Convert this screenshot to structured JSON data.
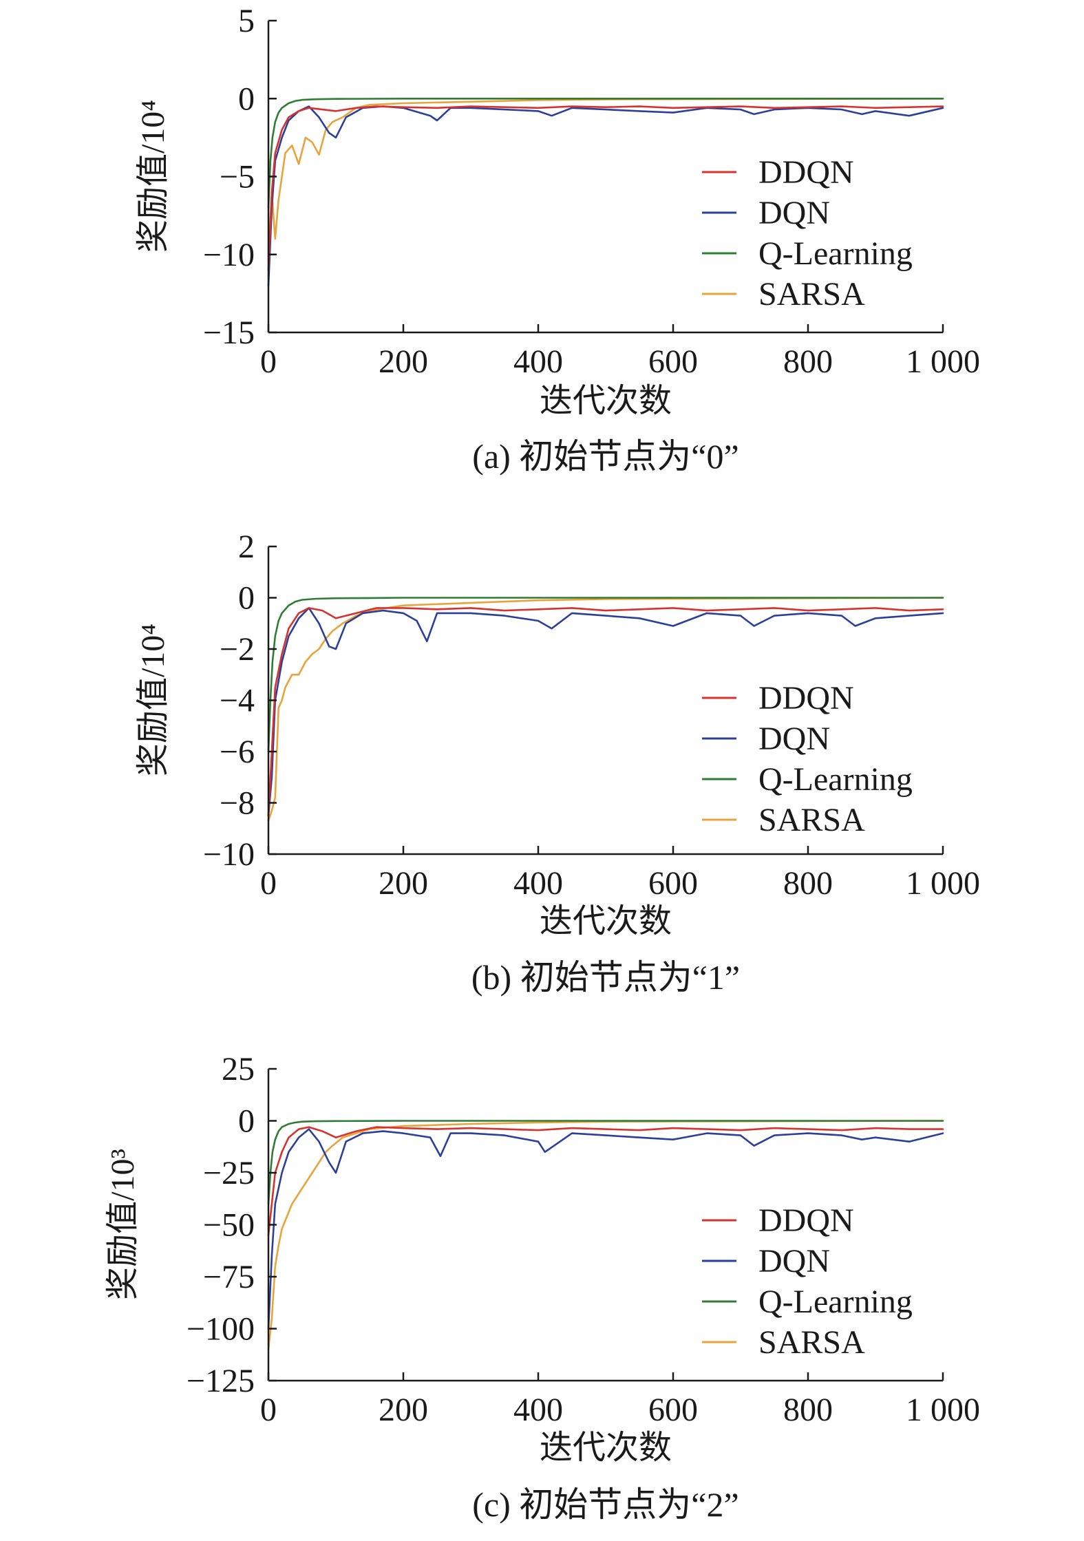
{
  "figure_xlabel": "迭代次数",
  "series_styles": [
    {
      "name": "DDQN",
      "color": "#d8322e"
    },
    {
      "name": "DQN",
      "color": "#2b3f9b"
    },
    {
      "name": "Q-Learning",
      "color": "#2f7d32"
    },
    {
      "name": "SARSA",
      "color": "#e8a33a"
    }
  ],
  "chart_data": [
    {
      "type": "line",
      "caption": "(a) 初始节点为“0”",
      "ylabel": "奖励值/10⁴",
      "xlabel": "迭代次数",
      "xlim": [
        0,
        1000
      ],
      "ylim": [
        -15,
        5
      ],
      "xticks": [
        0,
        200,
        400,
        600,
        800,
        1000
      ],
      "xtick_labels": [
        "0",
        "200",
        "400",
        "600",
        "800",
        "1 000"
      ],
      "yticks": [
        5,
        0,
        -5,
        -10,
        -15
      ],
      "ytick_labels": [
        "5",
        "0",
        "−5",
        "−10",
        "−15"
      ],
      "legend": [
        "DDQN",
        "DQN",
        "Q-Learning",
        "SARSA"
      ],
      "series": [
        {
          "name": "DDQN",
          "x": [
            0,
            5,
            10,
            20,
            30,
            45,
            60,
            80,
            100,
            130,
            160,
            200,
            250,
            300,
            350,
            400,
            450,
            500,
            550,
            600,
            650,
            700,
            750,
            800,
            850,
            900,
            950,
            1000
          ],
          "y": [
            -11,
            -6,
            -3.5,
            -2,
            -1.2,
            -0.8,
            -0.6,
            -0.7,
            -0.8,
            -0.6,
            -0.5,
            -0.55,
            -0.6,
            -0.5,
            -0.55,
            -0.6,
            -0.5,
            -0.55,
            -0.5,
            -0.6,
            -0.55,
            -0.5,
            -0.6,
            -0.55,
            -0.5,
            -0.6,
            -0.55,
            -0.5
          ]
        },
        {
          "name": "DQN",
          "x": [
            0,
            5,
            10,
            20,
            30,
            45,
            60,
            75,
            90,
            100,
            115,
            140,
            170,
            200,
            240,
            250,
            270,
            300,
            350,
            400,
            420,
            450,
            500,
            550,
            600,
            650,
            700,
            720,
            750,
            800,
            850,
            880,
            900,
            950,
            1000
          ],
          "y": [
            -12,
            -7,
            -4,
            -2.5,
            -1.4,
            -0.8,
            -0.5,
            -1.2,
            -2.2,
            -2.5,
            -1.2,
            -0.6,
            -0.5,
            -0.6,
            -1.1,
            -1.4,
            -0.6,
            -0.6,
            -0.7,
            -0.8,
            -1.1,
            -0.6,
            -0.7,
            -0.8,
            -0.9,
            -0.6,
            -0.7,
            -1.0,
            -0.7,
            -0.6,
            -0.7,
            -1.0,
            -0.8,
            -1.1,
            -0.6
          ]
        },
        {
          "name": "Q-Learning",
          "x": [
            0,
            3,
            6,
            10,
            15,
            20,
            30,
            40,
            50,
            70,
            100,
            150,
            200,
            1000
          ],
          "y": [
            -7,
            -4,
            -2.5,
            -1.5,
            -0.9,
            -0.6,
            -0.3,
            -0.15,
            -0.08,
            -0.04,
            -0.02,
            -0.01,
            0,
            0
          ]
        },
        {
          "name": "SARSA",
          "x": [
            0,
            5,
            10,
            15,
            20,
            25,
            35,
            45,
            55,
            65,
            75,
            85,
            95,
            110,
            130,
            150,
            200,
            300,
            400,
            500,
            1000
          ],
          "y": [
            -10,
            -6,
            -9,
            -6.5,
            -5,
            -3.5,
            -3,
            -4.2,
            -2.5,
            -2.8,
            -3.6,
            -2.0,
            -1.5,
            -1.2,
            -0.6,
            -0.4,
            -0.3,
            -0.2,
            -0.1,
            -0.05,
            0
          ]
        }
      ]
    },
    {
      "type": "line",
      "caption": "(b) 初始节点为“1”",
      "ylabel": "奖励值/10⁴",
      "xlabel": "迭代次数",
      "xlim": [
        0,
        1000
      ],
      "ylim": [
        -10,
        2
      ],
      "xticks": [
        0,
        200,
        400,
        600,
        800,
        1000
      ],
      "xtick_labels": [
        "0",
        "200",
        "400",
        "600",
        "800",
        "1 000"
      ],
      "yticks": [
        2,
        0,
        -2,
        -4,
        -6,
        -8,
        -10
      ],
      "ytick_labels": [
        "2",
        "0",
        "−2",
        "−4",
        "−6",
        "−8",
        "−10"
      ],
      "legend": [
        "DDQN",
        "DQN",
        "Q-Learning",
        "SARSA"
      ],
      "series": [
        {
          "name": "DDQN",
          "x": [
            0,
            5,
            10,
            20,
            30,
            45,
            60,
            80,
            100,
            130,
            160,
            200,
            250,
            300,
            350,
            400,
            450,
            500,
            550,
            600,
            650,
            700,
            750,
            800,
            850,
            900,
            950,
            1000
          ],
          "y": [
            -8.5,
            -6,
            -3.5,
            -2.2,
            -1.2,
            -0.6,
            -0.4,
            -0.5,
            -0.8,
            -0.6,
            -0.4,
            -0.4,
            -0.45,
            -0.4,
            -0.5,
            -0.45,
            -0.4,
            -0.5,
            -0.45,
            -0.4,
            -0.5,
            -0.45,
            -0.4,
            -0.5,
            -0.45,
            -0.4,
            -0.5,
            -0.45
          ]
        },
        {
          "name": "DQN",
          "x": [
            0,
            5,
            10,
            20,
            30,
            45,
            60,
            75,
            90,
            100,
            115,
            140,
            170,
            200,
            220,
            235,
            250,
            300,
            350,
            400,
            420,
            450,
            500,
            550,
            600,
            650,
            700,
            720,
            750,
            800,
            850,
            870,
            900,
            950,
            1000
          ],
          "y": [
            -8.5,
            -7,
            -4,
            -2.5,
            -1.5,
            -0.8,
            -0.4,
            -1.0,
            -1.9,
            -2.0,
            -1.0,
            -0.6,
            -0.5,
            -0.6,
            -0.9,
            -1.7,
            -0.6,
            -0.6,
            -0.7,
            -0.9,
            -1.2,
            -0.6,
            -0.7,
            -0.8,
            -1.1,
            -0.6,
            -0.7,
            -1.1,
            -0.7,
            -0.6,
            -0.7,
            -1.1,
            -0.8,
            -0.7,
            -0.6
          ]
        },
        {
          "name": "Q-Learning",
          "x": [
            0,
            3,
            6,
            10,
            15,
            20,
            30,
            40,
            50,
            70,
            100,
            150,
            200,
            1000
          ],
          "y": [
            -6,
            -4,
            -2.5,
            -1.5,
            -0.9,
            -0.6,
            -0.3,
            -0.15,
            -0.08,
            -0.04,
            -0.02,
            -0.01,
            0,
            0
          ]
        },
        {
          "name": "SARSA",
          "x": [
            0,
            5,
            10,
            15,
            20,
            25,
            35,
            45,
            55,
            65,
            75,
            85,
            95,
            110,
            130,
            150,
            200,
            300,
            400,
            500,
            1000
          ],
          "y": [
            -8.7,
            -8.3,
            -7.8,
            -4.3,
            -4.0,
            -3.5,
            -3.0,
            -3.0,
            -2.5,
            -2.2,
            -2.0,
            -1.6,
            -1.3,
            -1.0,
            -0.7,
            -0.5,
            -0.3,
            -0.2,
            -0.1,
            -0.05,
            0
          ]
        }
      ]
    },
    {
      "type": "line",
      "caption": "(c) 初始节点为“2”",
      "ylabel": "奖励值/10³",
      "xlabel": "迭代次数",
      "xlim": [
        0,
        1000
      ],
      "ylim": [
        -125,
        25
      ],
      "xticks": [
        0,
        200,
        400,
        600,
        800,
        1000
      ],
      "xtick_labels": [
        "0",
        "200",
        "400",
        "600",
        "800",
        "1 000"
      ],
      "yticks": [
        25,
        0,
        -25,
        -50,
        -75,
        -100,
        -125
      ],
      "ytick_labels": [
        "25",
        "0",
        "−25",
        "−50",
        "−75",
        "−100",
        "−125"
      ],
      "legend": [
        "DDQN",
        "DQN",
        "Q-Learning",
        "SARSA"
      ],
      "series": [
        {
          "name": "DDQN",
          "x": [
            0,
            5,
            10,
            20,
            30,
            45,
            60,
            80,
            100,
            130,
            160,
            200,
            250,
            300,
            350,
            400,
            450,
            500,
            550,
            600,
            650,
            700,
            750,
            800,
            850,
            900,
            950,
            1000
          ],
          "y": [
            -55,
            -40,
            -25,
            -15,
            -8,
            -4,
            -3,
            -5,
            -8,
            -5,
            -3,
            -3.5,
            -4,
            -3.5,
            -4,
            -4.5,
            -3.5,
            -4,
            -4.5,
            -3.5,
            -4,
            -4.5,
            -3.5,
            -4,
            -4.5,
            -3.5,
            -4,
            -4
          ]
        },
        {
          "name": "DQN",
          "x": [
            0,
            5,
            10,
            20,
            30,
            45,
            60,
            75,
            90,
            100,
            115,
            140,
            170,
            200,
            240,
            255,
            270,
            300,
            350,
            400,
            410,
            450,
            500,
            550,
            600,
            650,
            700,
            720,
            750,
            800,
            850,
            880,
            900,
            950,
            1000
          ],
          "y": [
            -100,
            -65,
            -40,
            -25,
            -15,
            -8,
            -4,
            -10,
            -20,
            -25,
            -10,
            -6,
            -5,
            -6,
            -8,
            -17,
            -6,
            -6,
            -7,
            -10,
            -15,
            -6,
            -7,
            -8,
            -9,
            -6,
            -7,
            -12,
            -7,
            -6,
            -7,
            -9,
            -8,
            -10,
            -6
          ]
        },
        {
          "name": "Q-Learning",
          "x": [
            0,
            3,
            6,
            10,
            15,
            20,
            30,
            40,
            50,
            70,
            100,
            150,
            200,
            1000
          ],
          "y": [
            -40,
            -25,
            -15,
            -9,
            -5,
            -3,
            -1.5,
            -0.8,
            -0.4,
            -0.2,
            -0.1,
            -0.05,
            0,
            0
          ]
        },
        {
          "name": "SARSA",
          "x": [
            0,
            5,
            10,
            15,
            20,
            25,
            35,
            45,
            55,
            65,
            75,
            85,
            95,
            110,
            130,
            150,
            200,
            300,
            400,
            500,
            1000
          ],
          "y": [
            -110,
            -95,
            -70,
            -60,
            -52,
            -48,
            -40,
            -35,
            -30,
            -25,
            -20,
            -15,
            -12,
            -8,
            -6,
            -4,
            -2.5,
            -1.5,
            -0.8,
            -0.4,
            0
          ]
        }
      ]
    }
  ]
}
